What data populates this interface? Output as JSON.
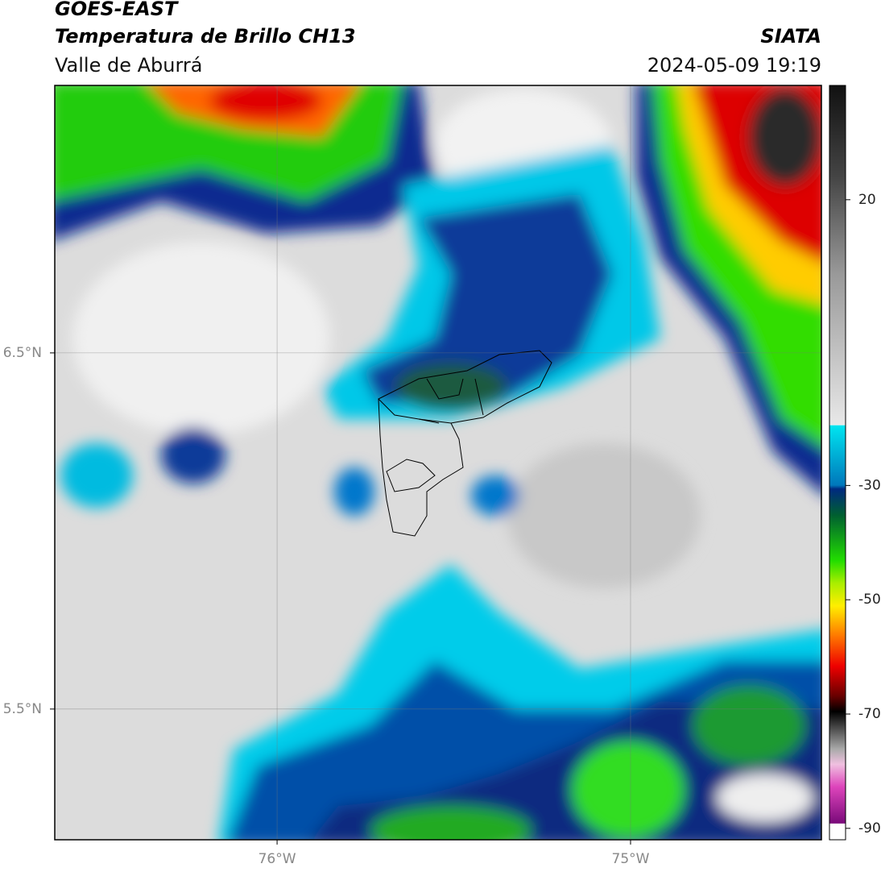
{
  "header": {
    "satellite": "GOES-EAST",
    "product": "Temperatura de Brillo CH13",
    "region": "Valle de Aburrá",
    "source": "SIATA",
    "timestamp": "2024-05-09 19:19"
  },
  "map": {
    "xlim": [
      -76.629,
      -74.46
    ],
    "ylim": [
      5.133,
      7.251
    ],
    "xticks": [
      {
        "value": -76,
        "label": "76°W"
      },
      {
        "value": -75,
        "label": "75°W"
      }
    ],
    "yticks": [
      {
        "value": 6.5,
        "label": "6.5°N"
      },
      {
        "value": 5.5,
        "label": "5.5°N"
      }
    ],
    "grid": true
  },
  "colorbar": {
    "lim": [
      -92,
      40
    ],
    "ticks": [
      20,
      -30,
      -50,
      -70,
      -90
    ]
  }
}
